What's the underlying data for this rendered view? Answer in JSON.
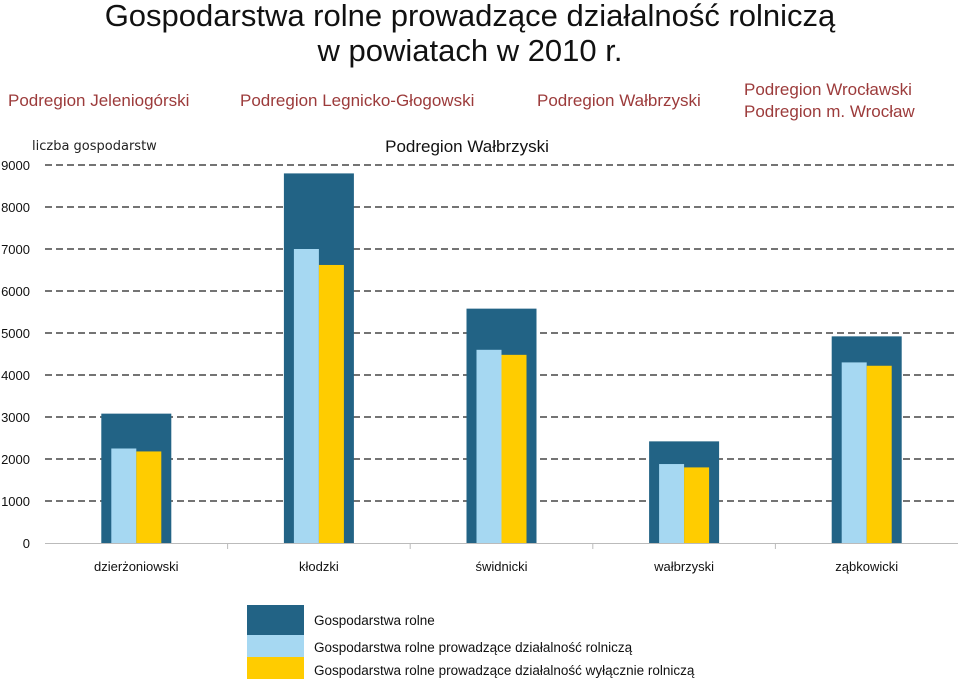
{
  "title_line1": "Gospodarstwa rolne prowadzące działalność rolniczą",
  "title_line2": "w powiatach w 2010 r.",
  "tabs": [
    "Podregion Jeleniogórski",
    "Podregion Legnicko-Głogowski",
    "Podregion Wałbrzyski",
    "Podregion Wrocławski",
    "Podregion m. Wrocław"
  ],
  "colors": {
    "tab_text": "#9c3b3b",
    "farms": "#226385",
    "farms_active": "#a6d8f2",
    "farms_only_agri": "#ffcc00"
  },
  "chart_data": {
    "type": "bar",
    "title": "Podregion Wałbrzyski",
    "ylabel": "liczba gospodarstw",
    "xlabel": "",
    "ylim": [
      0,
      9000
    ],
    "yticks": [
      0,
      1000,
      2000,
      3000,
      4000,
      5000,
      6000,
      7000,
      8000,
      9000
    ],
    "grid": "dashed horizontal",
    "legend_position": "bottom",
    "categories": [
      "dzierżoniowski",
      "kłodzki",
      "świdnicki",
      "wałbrzyski",
      "ząbkowicki"
    ],
    "series": [
      {
        "name": "Gospodarstwa rolne",
        "color": "#226385",
        "values": [
          3080,
          8800,
          5580,
          2420,
          4920
        ]
      },
      {
        "name": "Gospodarstwa rolne prowadzące działalność rolniczą",
        "color": "#a6d8f2",
        "values": [
          2250,
          7000,
          4600,
          1880,
          4300
        ]
      },
      {
        "name": "Gospodarstwa rolne prowadzące działalność wyłącznie rolniczą",
        "color": "#ffcc00",
        "values": [
          2180,
          6620,
          4480,
          1800,
          4220
        ]
      }
    ]
  }
}
